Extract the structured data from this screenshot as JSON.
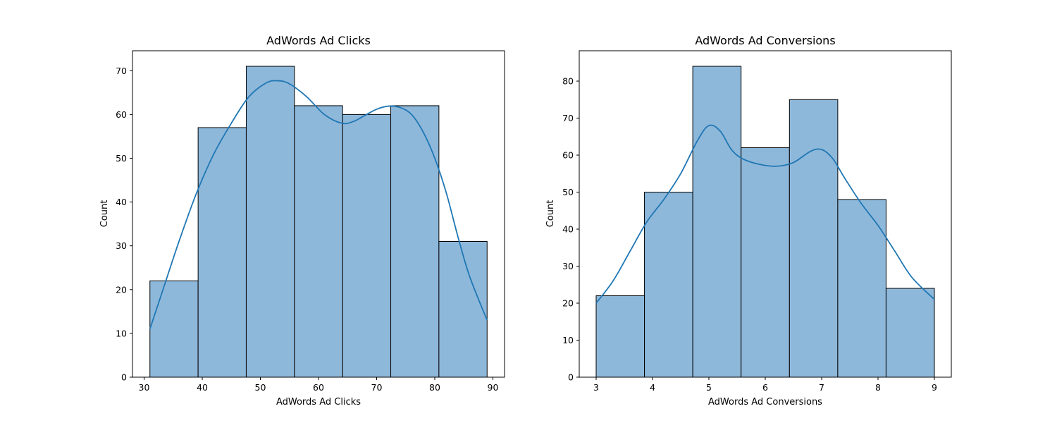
{
  "chart_data": [
    {
      "type": "histogram",
      "title": "AdWords Ad Clicks",
      "xlabel": "AdWords Ad Clicks",
      "ylabel": "Count",
      "xlim": [
        28,
        92
      ],
      "ylim": [
        0,
        74.55
      ],
      "xticks": [
        30,
        40,
        50,
        60,
        70,
        80,
        90
      ],
      "yticks": [
        0,
        10,
        20,
        30,
        40,
        50,
        60,
        70
      ],
      "bin_edges": [
        31,
        39.29,
        47.57,
        55.86,
        64.14,
        72.43,
        80.71,
        89
      ],
      "counts": [
        22,
        57,
        71,
        62,
        60,
        62,
        31
      ],
      "bar_color": "#8eb8da",
      "edge_color": "#000000",
      "kde": {
        "color": "#1f77b4",
        "x": [
          31,
          33,
          36,
          39,
          42,
          45,
          48,
          51,
          53,
          55,
          58,
          61,
          64,
          66,
          68,
          70,
          72,
          74,
          76,
          78,
          80,
          82,
          84,
          86,
          89
        ],
        "y": [
          11,
          19,
          31,
          42,
          51,
          58,
          64,
          67.2,
          67.7,
          67,
          64,
          60,
          58,
          58.4,
          59.8,
          61.2,
          61.9,
          61.6,
          60,
          56,
          50,
          42,
          32,
          23,
          13
        ]
      }
    },
    {
      "type": "histogram",
      "title": "AdWords Ad Conversions",
      "xlabel": "AdWords Ad Conversions",
      "ylabel": "Count",
      "xlim": [
        2.7,
        9.3
      ],
      "ylim": [
        0,
        88.2
      ],
      "xticks": [
        3,
        4,
        5,
        6,
        7,
        8,
        9
      ],
      "yticks": [
        0,
        10,
        20,
        30,
        40,
        50,
        60,
        70,
        80
      ],
      "bin_edges": [
        3,
        3.857,
        4.714,
        5.571,
        6.429,
        7.286,
        8.143,
        9
      ],
      "counts": [
        22,
        50,
        84,
        62,
        75,
        48,
        24
      ],
      "bar_color": "#8eb8da",
      "edge_color": "#000000",
      "kde": {
        "color": "#1f77b4",
        "x": [
          3,
          3.3,
          3.6,
          3.9,
          4.2,
          4.5,
          4.8,
          5,
          5.2,
          5.4,
          5.6,
          5.9,
          6.2,
          6.5,
          6.8,
          7,
          7.2,
          7.4,
          7.7,
          8,
          8.3,
          8.6,
          9
        ],
        "y": [
          20,
          26,
          34,
          42,
          48,
          55,
          64,
          68,
          66.5,
          61.5,
          59,
          57.5,
          57,
          58,
          61,
          61.5,
          59,
          54,
          47,
          41,
          34,
          27,
          21
        ]
      }
    }
  ]
}
